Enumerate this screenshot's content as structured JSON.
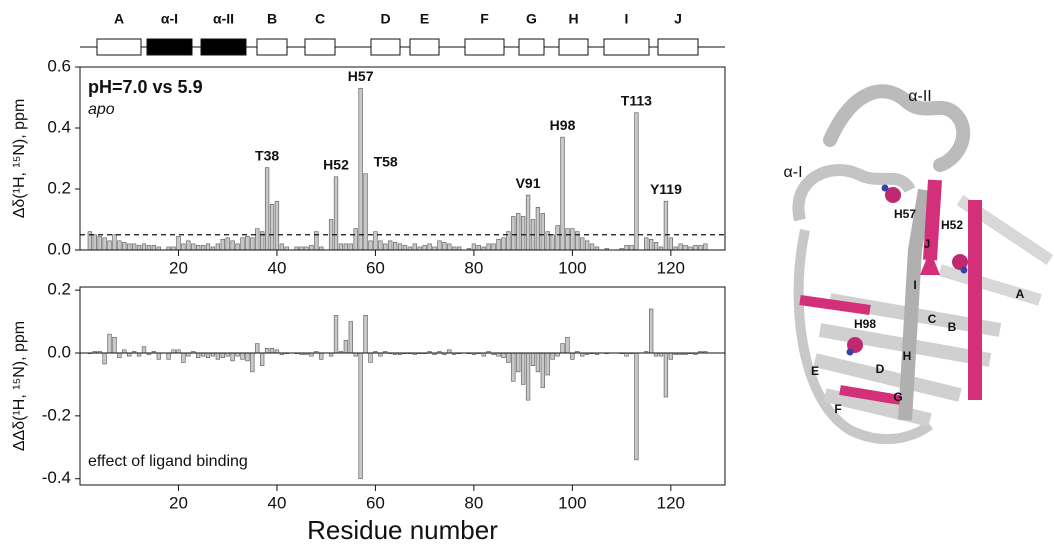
{
  "chart_data": [
    {
      "type": "bar",
      "ylabel": "Δδ(¹H, ¹⁵N), ppm",
      "legend_title": "pH=7.0 vs 5.9",
      "subtitle": "apo",
      "threshold": 0.05,
      "xlim": [
        0,
        131
      ],
      "xticks": [
        20,
        40,
        60,
        80,
        100,
        120
      ],
      "ylim": [
        0,
        0.6
      ],
      "yticks": [
        {
          "value": 0,
          "label": "0.0"
        },
        0.2,
        0.4,
        0.6
      ],
      "color": "#c8c8c8",
      "annotations": [
        {
          "text": "T38",
          "x": 38
        },
        {
          "text": "H52",
          "x": 52
        },
        {
          "text": "H57",
          "x": 57
        },
        {
          "text": "T58",
          "x": 58
        },
        {
          "text": "V91",
          "x": 91
        },
        {
          "text": "H98",
          "x": 98
        },
        {
          "text": "T113",
          "x": 113
        },
        {
          "text": "Y119",
          "x": 119
        }
      ],
      "x": [
        2,
        3,
        4,
        5,
        6,
        7,
        8,
        9,
        10,
        11,
        12,
        13,
        14,
        15,
        16,
        17,
        18,
        19,
        20,
        21,
        22,
        23,
        24,
        25,
        26,
        27,
        28,
        29,
        30,
        31,
        32,
        33,
        34,
        35,
        36,
        37,
        38,
        39,
        40,
        41,
        42,
        43,
        44,
        45,
        46,
        47,
        48,
        49,
        50,
        51,
        52,
        53,
        54,
        55,
        56,
        57,
        58,
        59,
        60,
        61,
        62,
        63,
        64,
        65,
        66,
        67,
        68,
        69,
        70,
        71,
        72,
        73,
        74,
        75,
        76,
        77,
        78,
        79,
        80,
        81,
        82,
        83,
        84,
        85,
        86,
        87,
        88,
        89,
        90,
        91,
        92,
        93,
        94,
        95,
        96,
        97,
        98,
        99,
        100,
        101,
        102,
        103,
        104,
        105,
        106,
        107,
        108,
        109,
        110,
        111,
        112,
        113,
        114,
        115,
        116,
        117,
        118,
        119,
        120,
        121,
        122,
        123,
        124,
        125,
        126,
        127
      ],
      "values": [
        0.06,
        0.05,
        0.045,
        0.04,
        0.03,
        0.05,
        0.03,
        0.025,
        0.02,
        0.02,
        0.015,
        0.02,
        0.015,
        0.015,
        0.01,
        null,
        0.01,
        0.01,
        0.045,
        0.02,
        0.03,
        0.02,
        0.015,
        0.015,
        0.02,
        0.01,
        0.02,
        0.035,
        0.04,
        0.03,
        0.02,
        0.04,
        0.045,
        0.04,
        0.07,
        0.06,
        0.27,
        0.15,
        0.16,
        0.02,
        0.01,
        null,
        0.01,
        0.01,
        0.01,
        0.015,
        0.06,
        0.01,
        null,
        0.1,
        0.24,
        0.02,
        0.02,
        0.02,
        0.07,
        0.53,
        0.25,
        0.03,
        0.06,
        0.03,
        0.02,
        0.03,
        0.025,
        0.02,
        0.015,
        0.01,
        0.02,
        0.01,
        0.015,
        0.02,
        0.01,
        0.03,
        0.025,
        0.02,
        0.01,
        0.01,
        null,
        0.005,
        0.02,
        0.015,
        0.01,
        0.02,
        0.02,
        0.035,
        0.04,
        0.06,
        0.11,
        0.12,
        0.11,
        0.18,
        0.1,
        0.14,
        0.12,
        0.06,
        0.05,
        0.08,
        0.37,
        0.07,
        0.07,
        0.06,
        0.04,
        0.03,
        0.02,
        0.01,
        null,
        0.005,
        null,
        null,
        0.005,
        0.015,
        0.015,
        0.45,
        null,
        0.04,
        0.035,
        0.025,
        0.01,
        0.16,
        0.04,
        0.01,
        0.02,
        0.015,
        0.01,
        0.015,
        0.015,
        0.02
      ]
    },
    {
      "type": "bar",
      "ylabel": "ΔΔδ(¹H, ¹⁵N), ppm",
      "subtitle": "effect of ligand binding",
      "xlabel": "Residue number",
      "xlim": [
        0,
        131
      ],
      "xticks": [
        20,
        40,
        60,
        80,
        100,
        120
      ],
      "ylim": [
        -0.42,
        0.21
      ],
      "yticks": [
        0.2,
        {
          "value": 0,
          "label": "0.0"
        },
        -0.2,
        -0.4
      ],
      "color": "#c8c8c8",
      "x": [
        2,
        3,
        4,
        5,
        6,
        7,
        8,
        9,
        10,
        11,
        12,
        13,
        14,
        15,
        16,
        17,
        18,
        19,
        20,
        21,
        22,
        23,
        24,
        25,
        26,
        27,
        28,
        29,
        30,
        31,
        32,
        33,
        34,
        35,
        36,
        37,
        38,
        39,
        40,
        41,
        42,
        43,
        44,
        45,
        46,
        47,
        48,
        49,
        50,
        51,
        52,
        53,
        54,
        55,
        56,
        57,
        58,
        59,
        60,
        61,
        62,
        63,
        64,
        65,
        66,
        67,
        68,
        69,
        70,
        71,
        72,
        73,
        74,
        75,
        76,
        77,
        78,
        79,
        80,
        81,
        82,
        83,
        84,
        85,
        86,
        87,
        88,
        89,
        90,
        91,
        92,
        93,
        94,
        95,
        96,
        97,
        98,
        99,
        100,
        101,
        102,
        103,
        104,
        105,
        106,
        107,
        108,
        109,
        110,
        111,
        112,
        113,
        114,
        115,
        116,
        117,
        118,
        119,
        120,
        121,
        122,
        123,
        124,
        125,
        126,
        127
      ],
      "values": [
        0,
        0.005,
        0.005,
        -0.035,
        0.06,
        0.05,
        -0.015,
        0.01,
        -0.01,
        0.005,
        -0.01,
        0.02,
        -0.005,
        0.005,
        -0.02,
        null,
        -0.02,
        0.01,
        0.01,
        -0.03,
        -0.01,
        0.005,
        -0.015,
        -0.01,
        -0.015,
        -0.01,
        -0.02,
        -0.015,
        -0.01,
        -0.025,
        -0.01,
        -0.02,
        -0.025,
        -0.06,
        0.03,
        -0.04,
        0.015,
        0.015,
        0.01,
        -0.005,
        0,
        null,
        0,
        -0.005,
        -0.005,
        -0.01,
        0.005,
        -0.02,
        null,
        -0.01,
        0.12,
        0.005,
        0.04,
        0.1,
        -0.01,
        -0.4,
        0.12,
        -0.03,
        0.005,
        -0.01,
        0.005,
        0,
        -0.005,
        -0.005,
        0,
        0,
        -0.005,
        0,
        0,
        0.005,
        -0.005,
        0.005,
        -0.005,
        0.01,
        -0.005,
        0,
        null,
        0,
        -0.005,
        0,
        -0.01,
        0.005,
        -0.005,
        -0.01,
        -0.015,
        -0.03,
        -0.09,
        -0.06,
        -0.1,
        -0.15,
        -0.04,
        -0.06,
        -0.11,
        -0.07,
        -0.02,
        -0.01,
        0.03,
        0.05,
        -0.02,
        0.005,
        -0.01,
        -0.005,
        0,
        -0.005,
        null,
        0,
        null,
        null,
        0,
        -0.01,
        0,
        -0.34,
        null,
        0.005,
        0.14,
        -0.01,
        -0.01,
        -0.14,
        -0.02,
        -0.005,
        -0.005,
        -0.005,
        0,
        -0.005,
        0.005,
        0.005
      ]
    }
  ],
  "secondary_structure": {
    "labels": [
      "A",
      "α-I",
      "α-II",
      "B",
      "C",
      "D",
      "E",
      "F",
      "G",
      "H",
      "I",
      "J"
    ]
  },
  "structure_labels": [
    "α-II",
    "α-I",
    "H57",
    "H52",
    "J",
    "I",
    "B",
    "A",
    "H98",
    "C",
    "H",
    "D",
    "E",
    "G",
    "F"
  ]
}
